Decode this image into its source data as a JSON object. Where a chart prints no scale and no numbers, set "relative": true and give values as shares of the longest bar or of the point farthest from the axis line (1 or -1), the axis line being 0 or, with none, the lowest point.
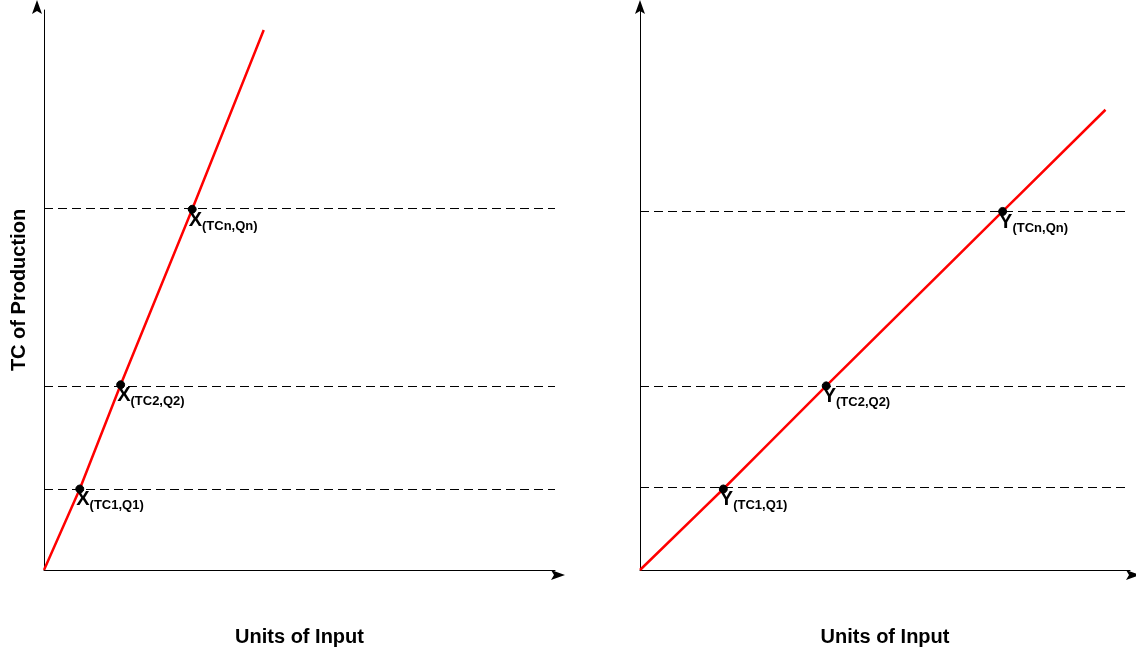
{
  "chart_data": [
    {
      "type": "line",
      "relative": true,
      "xlabel": "Units of Input",
      "ylabel": "TC of Production",
      "grid": false,
      "marker": "circle",
      "categories": [
        null,
        null,
        null,
        null,
        null,
        null,
        null,
        null,
        null,
        null,
        null,
        null,
        null,
        null,
        null,
        null,
        null,
        null,
        null,
        null,
        null,
        null,
        null,
        null,
        null,
        null,
        null,
        null,
        null,
        null,
        null,
        null,
        null,
        null,
        null,
        null,
        null,
        null,
        null,
        null,
        null,
        null,
        null,
        null,
        null,
        null,
        null,
        null,
        null,
        null,
        null,
        null,
        null,
        null,
        null,
        null,
        null,
        null,
        null,
        null,
        null,
        null,
        null,
        null,
        null,
        null,
        null,
        null,
        null,
        null,
        null,
        null,
        null,
        null,
        null,
        null,
        null,
        null,
        null,
        null,
        null,
        null,
        null,
        null,
        null,
        null,
        null,
        null,
        null,
        null,
        null,
        null,
        null,
        null,
        null,
        null,
        null,
        null,
        null,
        null,
        null
      ],
      "series": [
        {
          "color": "#ff0000",
          "values": [
            0,
            null,
            null,
            null,
            null,
            null,
            null,
            0.15,
            null,
            null,
            null,
            null,
            null,
            null,
            null,
            0.343,
            null,
            null,
            null,
            null,
            null,
            null,
            null,
            null,
            null,
            null,
            null,
            null,
            null,
            0.668,
            null,
            null,
            null,
            null,
            null,
            null,
            null,
            null,
            null,
            null,
            null,
            null,
            null,
            1,
            null,
            null,
            null,
            null,
            null,
            null,
            null,
            null,
            null,
            null,
            null,
            null,
            null,
            null,
            null,
            null,
            null,
            null,
            null,
            null,
            null,
            null,
            null,
            null,
            null,
            null,
            null,
            null,
            null,
            null,
            null,
            null,
            null,
            null,
            null,
            null,
            null,
            null,
            null,
            null,
            null,
            null,
            null,
            null,
            null,
            null,
            null,
            null,
            null,
            null,
            null,
            null,
            null,
            null,
            null,
            null,
            null
          ],
          "colors": [
            "#ff0000",
            null,
            null,
            null,
            null,
            null,
            null,
            "#000000",
            null,
            null,
            null,
            null,
            null,
            null,
            null,
            "#000000",
            null,
            null,
            null,
            null,
            null,
            null,
            null,
            null,
            null,
            null,
            null,
            null,
            null,
            "#000000",
            null,
            null,
            null,
            null,
            null,
            null,
            null,
            null,
            null,
            null,
            null,
            null,
            null,
            "#ff0000",
            null,
            null,
            null,
            null,
            null,
            null,
            null,
            null,
            null,
            null,
            null,
            null,
            null,
            null,
            null,
            null,
            null,
            null,
            null,
            null,
            null,
            null,
            null,
            null,
            null,
            null,
            null,
            null,
            null,
            null,
            null,
            null,
            null,
            null,
            null,
            null,
            null,
            null,
            null,
            null,
            null,
            null,
            null,
            null,
            null,
            null,
            null,
            null,
            null,
            null,
            null,
            null,
            null,
            null,
            null,
            null,
            null
          ]
        }
      ],
      "ref_lines": [
        {
          "axis": "y",
          "value": 0.15,
          "line_style": "dashed",
          "color": "#000000"
        },
        {
          "axis": "y",
          "value": 0.343,
          "line_style": "dashed",
          "color": "#000000"
        },
        {
          "axis": "y",
          "value": 0.668,
          "line_style": "dashed",
          "color": "#000000"
        }
      ],
      "annotations": [
        {
          "text": "X$_{(TC1,Q1)}$",
          "y": 0.15
        },
        {
          "text": "X$_{(TC2,Q2)}$",
          "y": 0.343
        },
        {
          "text": "X$_{(TCn,Qn)}$",
          "y": 0.668
        }
      ]
    },
    {
      "type": "line",
      "relative": true,
      "xlabel": "Units of Input",
      "grid": false,
      "marker": "circle",
      "categories": [
        null,
        null,
        null,
        null,
        null,
        null,
        null,
        null,
        null,
        null,
        null,
        null,
        null,
        null,
        null,
        null,
        null,
        null,
        null,
        null,
        null,
        null,
        null,
        null,
        null,
        null,
        null,
        null,
        null,
        null,
        null,
        null,
        null,
        null,
        null,
        null,
        null,
        null,
        null,
        null,
        null,
        null,
        null,
        null,
        null,
        null,
        null,
        null,
        null,
        null,
        null,
        null,
        null,
        null,
        null,
        null,
        null,
        null,
        null,
        null,
        null,
        null,
        null,
        null,
        null,
        null,
        null,
        null,
        null,
        null,
        null,
        null,
        null,
        null,
        null,
        null,
        null,
        null,
        null,
        null,
        null,
        null,
        null,
        null,
        null,
        null,
        null,
        null,
        null,
        null,
        null,
        null,
        null,
        null,
        null,
        null,
        null,
        null,
        null,
        null,
        null
      ],
      "series": [
        {
          "color": "#ff0000",
          "values": [
            0,
            null,
            null,
            null,
            null,
            null,
            null,
            null,
            null,
            null,
            null,
            null,
            null,
            null,
            null,
            null,
            null,
            0.176,
            null,
            null,
            null,
            null,
            null,
            null,
            null,
            null,
            null,
            null,
            null,
            null,
            null,
            null,
            null,
            null,
            null,
            null,
            null,
            null,
            0.4,
            null,
            null,
            null,
            null,
            null,
            null,
            null,
            null,
            null,
            null,
            null,
            null,
            null,
            null,
            null,
            null,
            null,
            null,
            null,
            null,
            null,
            null,
            null,
            null,
            null,
            null,
            null,
            null,
            null,
            null,
            null,
            null,
            null,
            null,
            null,
            0.779,
            null,
            null,
            null,
            null,
            null,
            null,
            null,
            null,
            null,
            null,
            null,
            null,
            null,
            null,
            null,
            null,
            null,
            null,
            null,
            null,
            1,
            null,
            null,
            null,
            null,
            null
          ],
          "colors": [
            "#ff0000",
            null,
            null,
            null,
            null,
            null,
            null,
            null,
            null,
            null,
            null,
            null,
            null,
            null,
            null,
            null,
            null,
            "#000000",
            null,
            null,
            null,
            null,
            null,
            null,
            null,
            null,
            null,
            null,
            null,
            null,
            null,
            null,
            null,
            null,
            null,
            null,
            null,
            null,
            "#000000",
            null,
            null,
            null,
            null,
            null,
            null,
            null,
            null,
            null,
            null,
            null,
            null,
            null,
            null,
            null,
            null,
            null,
            null,
            null,
            null,
            null,
            null,
            null,
            null,
            null,
            null,
            null,
            null,
            null,
            null,
            null,
            null,
            null,
            null,
            null,
            "#000000",
            null,
            null,
            null,
            null,
            null,
            null,
            null,
            null,
            null,
            null,
            null,
            null,
            null,
            null,
            null,
            null,
            null,
            null,
            null,
            null,
            "#ff0000",
            null,
            null,
            null,
            null,
            null
          ]
        }
      ],
      "ref_lines": [
        {
          "axis": "y",
          "value": 0.176,
          "line_style": "dashed",
          "color": "#000000"
        },
        {
          "axis": "y",
          "value": 0.4,
          "line_style": "dashed",
          "color": "#000000"
        },
        {
          "axis": "y",
          "value": 0.779,
          "line_style": "dashed",
          "color": "#000000"
        }
      ],
      "annotations": [
        {
          "text": "Y$_{(TC1,Q1)}$",
          "y": 0.176
        },
        {
          "text": "Y$_{(TC2,Q2)}$",
          "y": 0.4
        },
        {
          "text": "Y$_{(TCn,Qn)}$",
          "y": 0.779
        }
      ]
    }
  ]
}
